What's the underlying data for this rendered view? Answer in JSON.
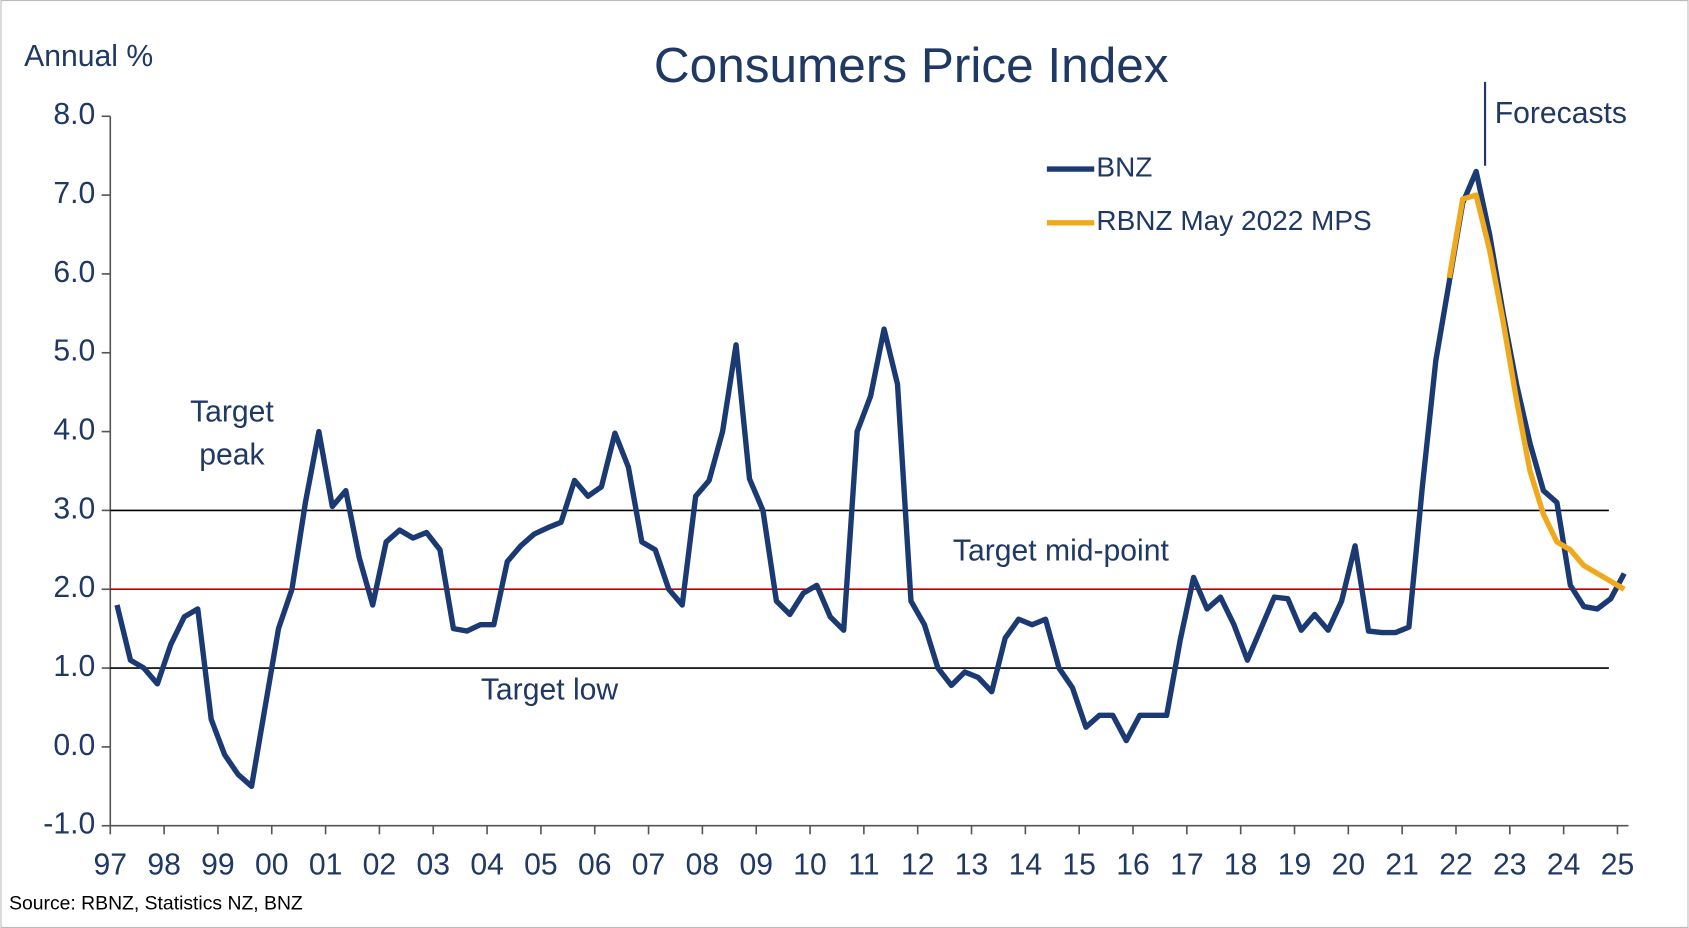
{
  "chart_data": {
    "type": "line",
    "title": "Consumers Price Index",
    "y_axis_label": "Annual %",
    "source": "Source: RBNZ, Statistics NZ, BNZ",
    "forecast_label": "Forecasts",
    "reference_lines": [
      {
        "value": 3,
        "color": "#000000",
        "label": "Target peak"
      },
      {
        "value": 2,
        "color": "#c00000",
        "label": "Target mid-point"
      },
      {
        "value": 1,
        "color": "#000000",
        "label": "Target low"
      }
    ],
    "categories": [
      "97",
      null,
      null,
      null,
      "98",
      null,
      null,
      null,
      "99",
      null,
      null,
      null,
      "00",
      null,
      null,
      null,
      "01",
      null,
      null,
      null,
      "02",
      null,
      null,
      null,
      "03",
      null,
      null,
      null,
      "04",
      null,
      null,
      null,
      "05",
      null,
      null,
      null,
      "06",
      null,
      null,
      null,
      "07",
      null,
      null,
      null,
      "08",
      null,
      null,
      null,
      "09",
      null,
      null,
      null,
      "10",
      null,
      null,
      null,
      "11",
      null,
      null,
      null,
      "12",
      null,
      null,
      null,
      "13",
      null,
      null,
      null,
      "14",
      null,
      null,
      null,
      "15",
      null,
      null,
      null,
      "16",
      null,
      null,
      null,
      "17",
      null,
      null,
      null,
      "18",
      null,
      null,
      null,
      "19",
      null,
      null,
      null,
      "20",
      null,
      null,
      null,
      "21",
      null,
      null,
      null,
      "22",
      null,
      null,
      null,
      "23",
      null,
      null,
      null,
      "24",
      null,
      null,
      null,
      "25"
    ],
    "series": [
      {
        "name": "BNZ",
        "color": "#1b3a73",
        "values": [
          1.8,
          1.1,
          1.0,
          0.8,
          1.3,
          1.65,
          1.75,
          0.35,
          -0.1,
          -0.35,
          -0.5,
          0.5,
          1.5,
          2.0,
          3.1,
          4.0,
          3.05,
          3.25,
          2.4,
          1.8,
          2.6,
          2.75,
          2.65,
          2.72,
          2.5,
          1.5,
          1.47,
          1.55,
          1.55,
          2.35,
          2.55,
          2.7,
          2.78,
          2.85,
          3.38,
          3.18,
          3.3,
          3.98,
          3.55,
          2.6,
          2.5,
          2.0,
          1.8,
          3.18,
          3.38,
          4.0,
          5.1,
          3.4,
          3.0,
          1.85,
          1.68,
          1.95,
          2.05,
          1.65,
          1.48,
          4.0,
          4.45,
          5.3,
          4.6,
          1.85,
          1.55,
          1.0,
          0.78,
          0.95,
          0.88,
          0.7,
          1.38,
          1.62,
          1.55,
          1.62,
          1.0,
          0.75,
          0.25,
          0.4,
          0.4,
          0.08,
          0.4,
          0.4,
          0.4,
          1.35,
          2.15,
          1.75,
          1.9,
          1.55,
          1.1,
          1.5,
          1.9,
          1.88,
          1.48,
          1.68,
          1.48,
          1.85,
          2.55,
          1.47,
          1.45,
          1.45,
          1.52,
          3.3,
          4.9,
          5.9,
          6.9,
          7.3,
          6.5,
          5.5,
          4.6,
          3.85,
          3.25,
          3.1,
          2.05,
          1.78,
          1.75,
          1.88,
          2.2
        ]
      },
      {
        "name": "RBNZ May 2022 MPS",
        "color": "#f0a91d",
        "values": [
          null,
          null,
          null,
          null,
          null,
          null,
          null,
          null,
          null,
          null,
          null,
          null,
          null,
          null,
          null,
          null,
          null,
          null,
          null,
          null,
          null,
          null,
          null,
          null,
          null,
          null,
          null,
          null,
          null,
          null,
          null,
          null,
          null,
          null,
          null,
          null,
          null,
          null,
          null,
          null,
          null,
          null,
          null,
          null,
          null,
          null,
          null,
          null,
          null,
          null,
          null,
          null,
          null,
          null,
          null,
          null,
          null,
          null,
          null,
          null,
          null,
          null,
          null,
          null,
          null,
          null,
          null,
          null,
          null,
          null,
          null,
          null,
          null,
          null,
          null,
          null,
          null,
          null,
          null,
          null,
          null,
          null,
          null,
          null,
          null,
          null,
          null,
          null,
          null,
          null,
          null,
          null,
          null,
          null,
          null,
          null,
          null,
          null,
          null,
          5.95,
          6.95,
          7.0,
          6.3,
          5.4,
          4.4,
          3.5,
          2.95,
          2.6,
          2.5,
          2.3,
          2.2,
          2.1,
          2.0
        ]
      }
    ],
    "ylim": [
      -1,
      8
    ],
    "yticks": [
      {
        "value": -1,
        "label": "-1.0"
      },
      {
        "value": 0,
        "label": "0.0"
      },
      {
        "value": 1,
        "label": "1.0"
      },
      {
        "value": 2,
        "label": "2.0"
      },
      {
        "value": 3,
        "label": "3.0"
      },
      {
        "value": 4,
        "label": "4.0"
      },
      {
        "value": 5,
        "label": "5.0"
      },
      {
        "value": 6,
        "label": "6.0"
      },
      {
        "value": 7,
        "label": "7.0"
      },
      {
        "value": 8,
        "label": "8.0"
      }
    ],
    "legend": "top-right"
  }
}
